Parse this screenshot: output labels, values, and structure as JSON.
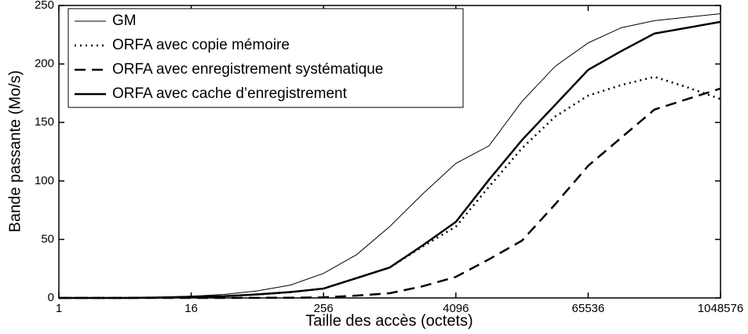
{
  "chart_data": {
    "type": "line",
    "xlabel": "Taille des accès (octets)",
    "ylabel": "Bande passante (Mo/s)",
    "x": [
      1,
      2,
      4,
      8,
      16,
      32,
      64,
      128,
      256,
      512,
      1024,
      2048,
      4096,
      8192,
      16384,
      32768,
      65536,
      131072,
      262144,
      524288,
      1048576
    ],
    "xscale": "log",
    "xlog_base": 2,
    "xlim": [
      1,
      1048576
    ],
    "xticks": [
      1,
      16,
      256,
      4096,
      65536,
      1048576
    ],
    "ylim": [
      0,
      250
    ],
    "yticks": [
      0,
      50,
      100,
      150,
      200,
      250
    ],
    "legend": "upper left",
    "series": [
      {
        "name": "GM",
        "color": "#000000",
        "line_style": "solid",
        "line_width": 1,
        "values": [
          0,
          0,
          0.2,
          0.5,
          1.5,
          3,
          6,
          11,
          21,
          37,
          61,
          89,
          115,
          130,
          168,
          198,
          218,
          231,
          237,
          240,
          243
        ]
      },
      {
        "name": "ORFA avec copie mémoire",
        "color": "#000000",
        "line_style": "dotted",
        "line_width": 2.5,
        "values": [
          0,
          0,
          0,
          0.3,
          0.8,
          1.5,
          3,
          5,
          8,
          17,
          26,
          44,
          61,
          95,
          128,
          155,
          173,
          182,
          189,
          180,
          170
        ]
      },
      {
        "name": "ORFA avec enregistrement systématique",
        "color": "#000000",
        "line_style": "dashed",
        "line_width": 2.5,
        "values": [
          0,
          0,
          0,
          0,
          0,
          0,
          0.1,
          0.2,
          0.5,
          2,
          4,
          10,
          18,
          33,
          49,
          80,
          113,
          137,
          161,
          170,
          179
        ]
      },
      {
        "name": "ORFA avec cache d’enregistrement",
        "color": "#000000",
        "line_style": "solid",
        "line_width": 2.5,
        "values": [
          0,
          0,
          0,
          0.3,
          1,
          1.5,
          3,
          5,
          8,
          17,
          26,
          45,
          65,
          101,
          135,
          165,
          195,
          211,
          226,
          231,
          236
        ]
      }
    ]
  }
}
